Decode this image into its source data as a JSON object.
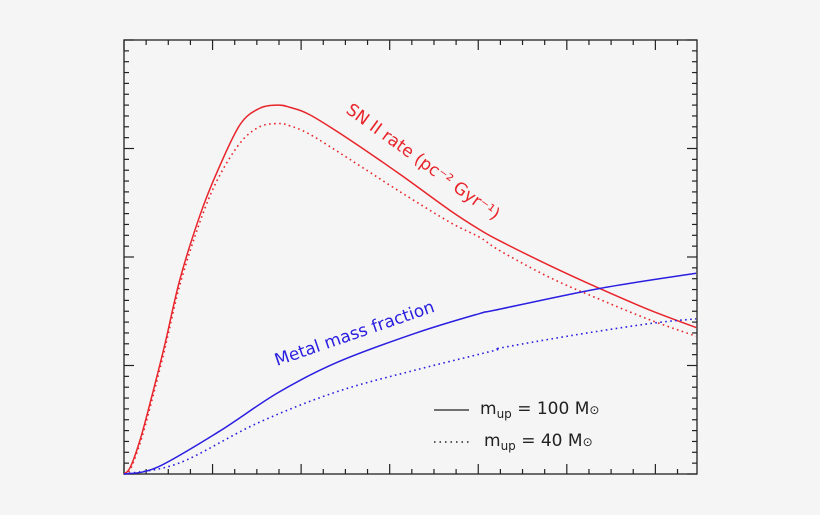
{
  "chart_data": {
    "type": "line",
    "title": "",
    "xlabel": "",
    "ylabel": "",
    "tick_labels_shown": false,
    "xlim": [
      0,
      6.47
    ],
    "ylim": [
      0,
      4
    ],
    "x_major_step": 1,
    "x_minor_per_major": 4,
    "y_major_step": 1,
    "y_minor_per_major": 10,
    "grid": false,
    "frame": "box with ticks on all four sides",
    "legend_position": "bottom-right",
    "curve_labels": {
      "sn": "SN II rate (pc⁻² Gyr⁻¹)",
      "metal": "Metal mass fraction"
    },
    "legend": [
      {
        "style": "solid",
        "m": "m",
        "sub": "up",
        "rest": " = 100 M",
        "sym": "⊙"
      },
      {
        "style": "dotted",
        "m": "m",
        "sub": "up",
        "rest": " = 40 M",
        "sym": "⊙"
      }
    ],
    "series": [
      {
        "curve": "sn",
        "style": "solid",
        "color": "#e8242a",
        "x": [
          0,
          0.07,
          0.18,
          0.29,
          0.46,
          0.63,
          0.86,
          1.06,
          1.31,
          1.53,
          1.74,
          1.87,
          2.1,
          2.55,
          3.12,
          3.68,
          4.02,
          4.24,
          4.81,
          5.37,
          5.94,
          6.46
        ],
        "y": [
          0,
          0.06,
          0.31,
          0.64,
          1.19,
          1.79,
          2.39,
          2.8,
          3.22,
          3.37,
          3.4,
          3.38,
          3.31,
          3.08,
          2.76,
          2.43,
          2.25,
          2.15,
          1.92,
          1.71,
          1.51,
          1.35
        ]
      },
      {
        "curve": "sn",
        "style": "dotted",
        "color": "#e8242a",
        "x": [
          0,
          0.07,
          0.18,
          0.29,
          0.46,
          0.63,
          0.86,
          1.06,
          1.31,
          1.53,
          1.74,
          1.87,
          2.1,
          2.55,
          3.12,
          3.68,
          4.02,
          4.24,
          4.81,
          5.37,
          5.94,
          6.46
        ],
        "y": [
          0,
          0.04,
          0.28,
          0.6,
          1.15,
          1.74,
          2.33,
          2.72,
          3.05,
          3.2,
          3.23,
          3.21,
          3.13,
          2.9,
          2.6,
          2.32,
          2.18,
          2.06,
          1.81,
          1.61,
          1.42,
          1.27
        ]
      },
      {
        "curve": "metal",
        "style": "solid",
        "color": "#2a1ee0",
        "x": [
          0,
          0.37,
          1.07,
          1.74,
          2.41,
          3.3,
          4.02,
          4.19,
          5.37,
          6.46
        ],
        "y": [
          0,
          0.06,
          0.39,
          0.75,
          1.03,
          1.3,
          1.48,
          1.51,
          1.71,
          1.85
        ]
      },
      {
        "curve": "metal",
        "style": "dotted",
        "color": "#2a1ee0",
        "x": [
          0,
          0.62,
          1.51,
          2.41,
          3.3,
          4.19,
          4.24,
          5.08,
          5.97,
          6.46
        ],
        "y": [
          0,
          0.1,
          0.47,
          0.76,
          0.96,
          1.14,
          1.16,
          1.28,
          1.39,
          1.43
        ]
      }
    ]
  }
}
